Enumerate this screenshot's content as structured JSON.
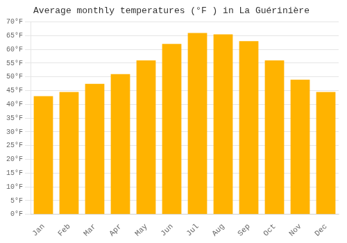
{
  "chart_data": {
    "type": "bar",
    "title": "Average monthly temperatures (°F ) in La Guérinière",
    "categories": [
      "Jan",
      "Feb",
      "Mar",
      "Apr",
      "May",
      "Jun",
      "Jul",
      "Aug",
      "Sep",
      "Oct",
      "Nov",
      "Dec"
    ],
    "values": [
      43.0,
      44.5,
      47.5,
      51.0,
      56.0,
      62.0,
      66.0,
      65.5,
      63.0,
      56.0,
      49.0,
      44.5
    ],
    "color": "#FFB300",
    "ylim": [
      0,
      70
    ],
    "yticks": [
      {
        "value": 0,
        "label": "0°F"
      },
      {
        "value": 5,
        "label": "5°F"
      },
      {
        "value": 10,
        "label": "10°F"
      },
      {
        "value": 15,
        "label": "15°F"
      },
      {
        "value": 20,
        "label": "20°F"
      },
      {
        "value": 25,
        "label": "25°F"
      },
      {
        "value": 30,
        "label": "30°F"
      },
      {
        "value": 35,
        "label": "35°F"
      },
      {
        "value": 40,
        "label": "40°F"
      },
      {
        "value": 45,
        "label": "45°F"
      },
      {
        "value": 50,
        "label": "50°F"
      },
      {
        "value": 55,
        "label": "55°F"
      },
      {
        "value": 60,
        "label": "60°F"
      },
      {
        "value": 65,
        "label": "65°F"
      },
      {
        "value": 70,
        "label": "70°F"
      }
    ],
    "grid": true
  }
}
